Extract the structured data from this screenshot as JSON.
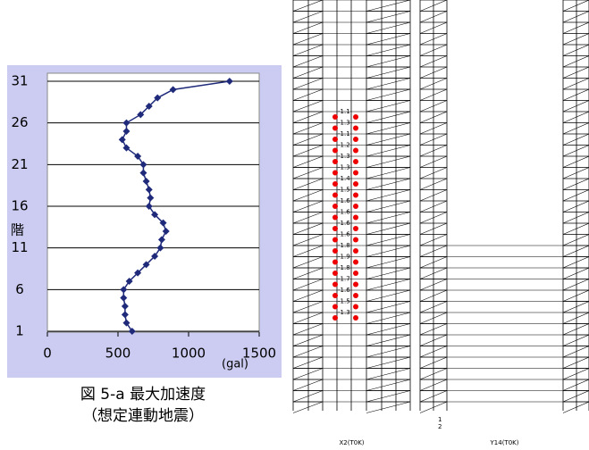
{
  "chart_data": {
    "type": "profile",
    "axis_label": "階",
    "unit_label": "(gal)",
    "caption": "図 5-a 最大加速度",
    "subcaption": "（想定連動地震）",
    "floors": [
      1,
      2,
      3,
      4,
      5,
      6,
      7,
      8,
      9,
      10,
      11,
      12,
      13,
      14,
      15,
      16,
      17,
      18,
      19,
      20,
      21,
      22,
      23,
      24,
      25,
      26,
      27,
      28,
      29,
      30,
      31
    ],
    "values": [
      600,
      560,
      550,
      550,
      540,
      540,
      580,
      640,
      700,
      760,
      800,
      810,
      840,
      820,
      760,
      720,
      730,
      720,
      700,
      680,
      680,
      640,
      560,
      530,
      560,
      560,
      660,
      720,
      780,
      890,
      1290
    ],
    "color": "#1f2a7a",
    "xlim": [
      0,
      1500
    ],
    "xticks": [
      0,
      500,
      1000,
      1500
    ],
    "ylim": [
      1,
      31
    ],
    "yticks": [
      1,
      6,
      11,
      16,
      21,
      26,
      31
    ],
    "grid": true
  },
  "diagrams": [
    {
      "caption": "X2(T0K)",
      "labels": [
        "-1.1",
        "-1.3",
        "-1.1",
        "-1.2",
        "-1.3",
        "-1.3",
        "-1.4",
        "-1.5",
        "-1.6",
        "-1.6",
        "-1.6",
        "-1.6",
        "-1.8",
        "-1.9",
        "-1.8",
        "-1.7",
        "-1.6",
        "-1.5",
        "-1.3"
      ]
    },
    {
      "caption": "Y14(T0K)",
      "labels": [
        "1",
        "2"
      ]
    }
  ]
}
